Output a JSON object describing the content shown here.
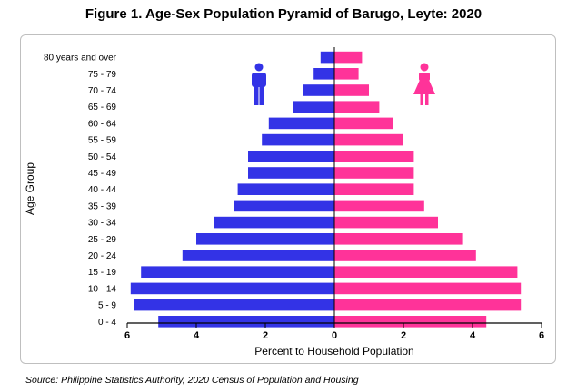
{
  "figure_title": "Figure 1. Age-Sex Population Pyramid of Barugo, Leyte: 2020",
  "source_note": "Source: Philippine Statistics Authority, 2020 Census of Population and Housing",
  "colors": {
    "male": "#3333e6",
    "female": "#ff3399",
    "axis": "#000000",
    "frame": "#bfbfbf"
  },
  "icons": {
    "male": "male-person-icon",
    "female": "female-person-icon"
  },
  "chart_data": {
    "type": "bar",
    "orientation": "horizontal",
    "layout": "population-pyramid",
    "title": "Figure 1. Age-Sex Population Pyramid of Barugo, Leyte: 2020",
    "xlabel": "Percent to Household Population",
    "ylabel": "Age Group",
    "xlim": [
      -6,
      6
    ],
    "x_ticks": [
      6,
      4,
      2,
      0,
      2,
      4,
      6
    ],
    "grid": false,
    "legend": "icons at top (male left, female right)",
    "categories": [
      "80 years and over",
      "75 - 79",
      "70 - 74",
      "65 - 69",
      "60 - 64",
      "55 - 59",
      "50 - 54",
      "45 - 49",
      "40 - 44",
      "35 - 39",
      "30 - 34",
      "25 - 29",
      "20 - 24",
      "15 - 19",
      "10 - 14",
      "5 - 9",
      "0 - 4"
    ],
    "series": [
      {
        "side": "left",
        "color": "#3333e6",
        "values": [
          0.4,
          0.6,
          0.9,
          1.2,
          1.9,
          2.1,
          2.5,
          2.5,
          2.8,
          2.9,
          3.5,
          4.0,
          4.4,
          5.6,
          5.9,
          5.8,
          5.1
        ]
      },
      {
        "side": "right",
        "color": "#ff3399",
        "values": [
          0.8,
          0.7,
          1.0,
          1.3,
          1.7,
          2.0,
          2.3,
          2.3,
          2.3,
          2.6,
          3.0,
          3.7,
          4.1,
          5.3,
          5.4,
          5.4,
          4.4
        ]
      }
    ]
  }
}
